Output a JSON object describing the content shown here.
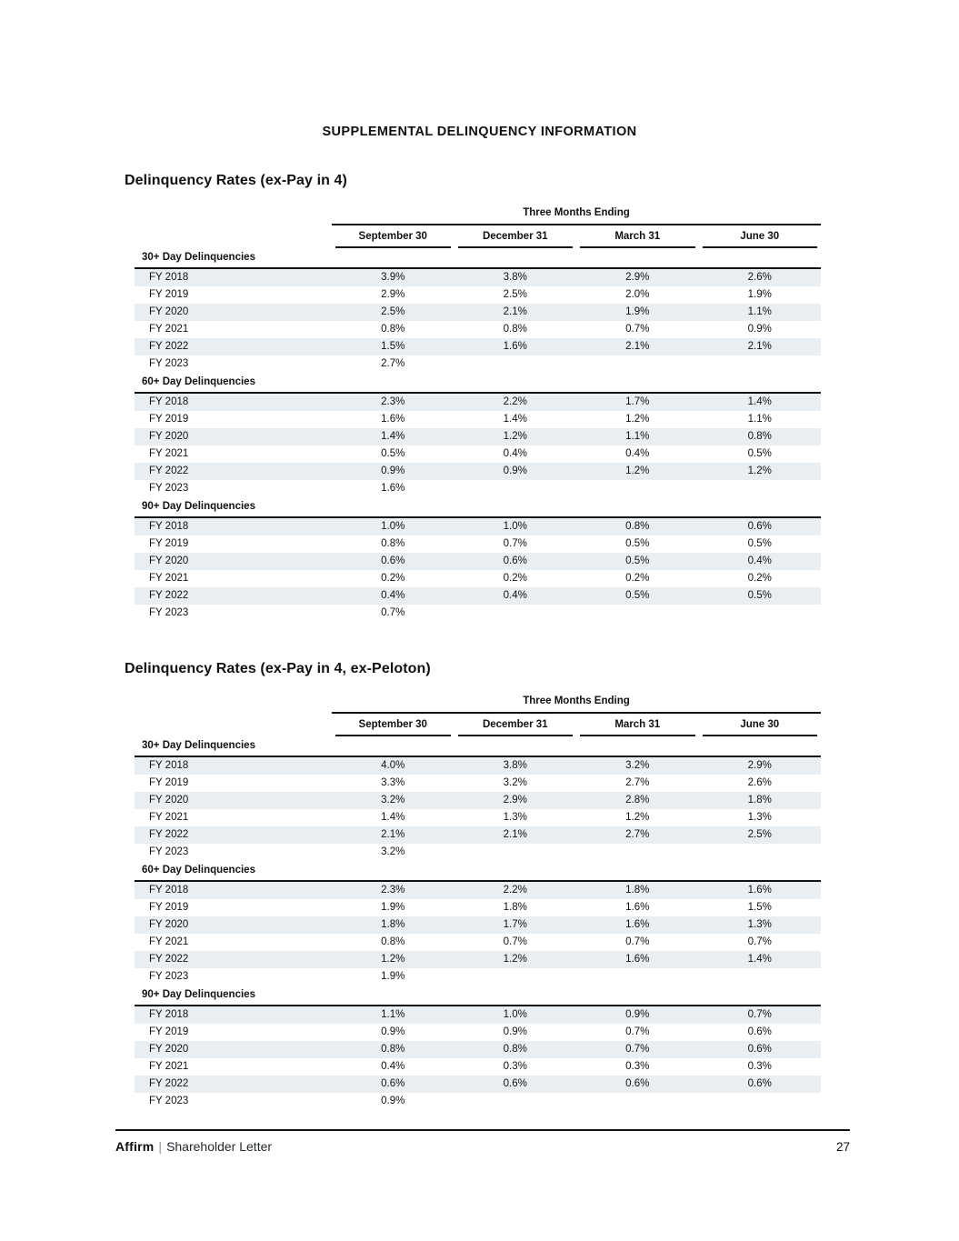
{
  "page_title": "SUPPLEMENTAL DELINQUENCY INFORMATION",
  "colors": {
    "row_shade": "#e9eef3",
    "text": "#111111",
    "rule": "#111111"
  },
  "tables": [
    {
      "heading": "Delinquency Rates (ex-Pay in 4)",
      "spanner": "Three Months Ending",
      "columns": [
        "September 30",
        "December 31",
        "March 31",
        "June 30"
      ],
      "groups": [
        {
          "label": "30+ Day Delinquencies",
          "rows": [
            {
              "label": "FY 2018",
              "values": [
                "3.9%",
                "3.8%",
                "2.9%",
                "2.6%"
              ]
            },
            {
              "label": "FY 2019",
              "values": [
                "2.9%",
                "2.5%",
                "2.0%",
                "1.9%"
              ]
            },
            {
              "label": "FY 2020",
              "values": [
                "2.5%",
                "2.1%",
                "1.9%",
                "1.1%"
              ]
            },
            {
              "label": "FY 2021",
              "values": [
                "0.8%",
                "0.8%",
                "0.7%",
                "0.9%"
              ]
            },
            {
              "label": "FY 2022",
              "values": [
                "1.5%",
                "1.6%",
                "2.1%",
                "2.1%"
              ]
            },
            {
              "label": "FY 2023",
              "values": [
                "2.7%"
              ]
            }
          ]
        },
        {
          "label": "60+ Day Delinquencies",
          "rows": [
            {
              "label": "FY 2018",
              "values": [
                "2.3%",
                "2.2%",
                "1.7%",
                "1.4%"
              ]
            },
            {
              "label": "FY 2019",
              "values": [
                "1.6%",
                "1.4%",
                "1.2%",
                "1.1%"
              ]
            },
            {
              "label": "FY 2020",
              "values": [
                "1.4%",
                "1.2%",
                "1.1%",
                "0.8%"
              ]
            },
            {
              "label": "FY 2021",
              "values": [
                "0.5%",
                "0.4%",
                "0.4%",
                "0.5%"
              ]
            },
            {
              "label": "FY 2022",
              "values": [
                "0.9%",
                "0.9%",
                "1.2%",
                "1.2%"
              ]
            },
            {
              "label": "FY 2023",
              "values": [
                "1.6%"
              ]
            }
          ]
        },
        {
          "label": "90+ Day Delinquencies",
          "rows": [
            {
              "label": "FY 2018",
              "values": [
                "1.0%",
                "1.0%",
                "0.8%",
                "0.6%"
              ]
            },
            {
              "label": "FY 2019",
              "values": [
                "0.8%",
                "0.7%",
                "0.5%",
                "0.5%"
              ]
            },
            {
              "label": "FY 2020",
              "values": [
                "0.6%",
                "0.6%",
                "0.5%",
                "0.4%"
              ]
            },
            {
              "label": "FY 2021",
              "values": [
                "0.2%",
                "0.2%",
                "0.2%",
                "0.2%"
              ]
            },
            {
              "label": "FY 2022",
              "values": [
                "0.4%",
                "0.4%",
                "0.5%",
                "0.5%"
              ]
            },
            {
              "label": "FY 2023",
              "values": [
                "0.7%"
              ]
            }
          ]
        }
      ]
    },
    {
      "heading": "Delinquency Rates (ex-Pay in 4, ex-Peloton)",
      "spanner": "Three Months Ending",
      "columns": [
        "September 30",
        "December 31",
        "March 31",
        "June 30"
      ],
      "groups": [
        {
          "label": "30+ Day Delinquencies",
          "rows": [
            {
              "label": "FY 2018",
              "values": [
                "4.0%",
                "3.8%",
                "3.2%",
                "2.9%"
              ]
            },
            {
              "label": "FY 2019",
              "values": [
                "3.3%",
                "3.2%",
                "2.7%",
                "2.6%"
              ]
            },
            {
              "label": "FY 2020",
              "values": [
                "3.2%",
                "2.9%",
                "2.8%",
                "1.8%"
              ]
            },
            {
              "label": "FY 2021",
              "values": [
                "1.4%",
                "1.3%",
                "1.2%",
                "1.3%"
              ]
            },
            {
              "label": "FY 2022",
              "values": [
                "2.1%",
                "2.1%",
                "2.7%",
                "2.5%"
              ]
            },
            {
              "label": "FY 2023",
              "values": [
                "3.2%"
              ]
            }
          ]
        },
        {
          "label": "60+ Day Delinquencies",
          "rows": [
            {
              "label": "FY 2018",
              "values": [
                "2.3%",
                "2.2%",
                "1.8%",
                "1.6%"
              ]
            },
            {
              "label": "FY 2019",
              "values": [
                "1.9%",
                "1.8%",
                "1.6%",
                "1.5%"
              ]
            },
            {
              "label": "FY 2020",
              "values": [
                "1.8%",
                "1.7%",
                "1.6%",
                "1.3%"
              ]
            },
            {
              "label": "FY 2021",
              "values": [
                "0.8%",
                "0.7%",
                "0.7%",
                "0.7%"
              ]
            },
            {
              "label": "FY 2022",
              "values": [
                "1.2%",
                "1.2%",
                "1.6%",
                "1.4%"
              ]
            },
            {
              "label": "FY 2023",
              "values": [
                "1.9%"
              ]
            }
          ]
        },
        {
          "label": "90+ Day Delinquencies",
          "rows": [
            {
              "label": "FY 2018",
              "values": [
                "1.1%",
                "1.0%",
                "0.9%",
                "0.7%"
              ]
            },
            {
              "label": "FY 2019",
              "values": [
                "0.9%",
                "0.9%",
                "0.7%",
                "0.6%"
              ]
            },
            {
              "label": "FY 2020",
              "values": [
                "0.8%",
                "0.8%",
                "0.7%",
                "0.6%"
              ]
            },
            {
              "label": "FY 2021",
              "values": [
                "0.4%",
                "0.3%",
                "0.3%",
                "0.3%"
              ]
            },
            {
              "label": "FY 2022",
              "values": [
                "0.6%",
                "0.6%",
                "0.6%",
                "0.6%"
              ]
            },
            {
              "label": "FY 2023",
              "values": [
                "0.9%"
              ]
            }
          ]
        }
      ]
    }
  ],
  "footer": {
    "brand": "Affirm",
    "separator": "|",
    "document_name": "Shareholder Letter",
    "page_number": "27"
  }
}
